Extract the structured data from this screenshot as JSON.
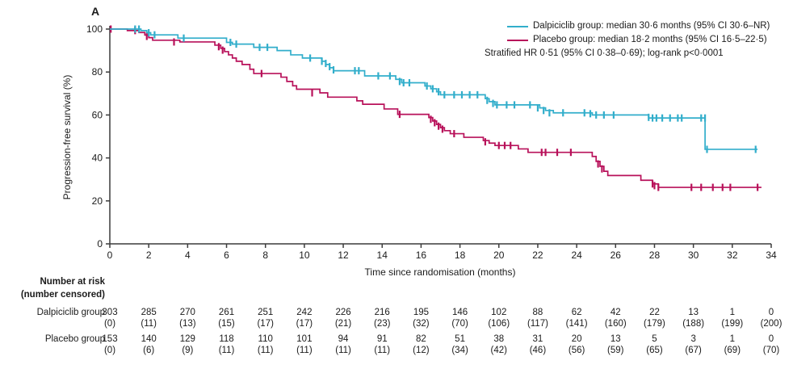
{
  "panel_label": "A",
  "axis": {
    "xlabel": "Time since randomisation (months)",
    "ylabel": "Progression-free survival (%)"
  },
  "legend": {
    "entries": [
      {
        "label": "Dalpiciclib group: median 30·6 months (95% CI 30·6–NR)",
        "color": "#32AECB"
      },
      {
        "label": "Placebo group: median 18·2 months (95% CI 16·5–22·5)",
        "color": "#B8115A"
      }
    ],
    "note": "Stratified HR 0·51 (95% CI 0·38–0·69); log-rank p<0·0001"
  },
  "chart_data": {
    "type": "line",
    "subtype": "kaplan-meier-step",
    "title": "",
    "xlabel": "Time since randomisation (months)",
    "ylabel": "Progression-free survival (%)",
    "xlim": [
      0,
      34
    ],
    "ylim": [
      0,
      100
    ],
    "xticks": [
      0,
      2,
      4,
      6,
      8,
      10,
      12,
      14,
      16,
      18,
      20,
      22,
      24,
      26,
      28,
      30,
      32,
      34
    ],
    "yticks": [
      0,
      20,
      40,
      60,
      80,
      100
    ],
    "grid": false,
    "legend_position": "top-right",
    "series": [
      {
        "name": "Dalpiciclib group",
        "color": "#32AECB",
        "median_months": "30·6",
        "ci": "30·6–NR",
        "end_time": 33.3,
        "steps": [
          [
            0,
            100
          ],
          [
            1.6,
            99.3
          ],
          [
            1.9,
            98.3
          ],
          [
            2.1,
            97.3
          ],
          [
            3.5,
            95.8
          ],
          [
            6.0,
            93.8
          ],
          [
            6.3,
            93.0
          ],
          [
            7.4,
            91.5
          ],
          [
            8.6,
            90.0
          ],
          [
            9.3,
            88.0
          ],
          [
            9.9,
            86.5
          ],
          [
            10.9,
            85.0
          ],
          [
            11.1,
            83.5
          ],
          [
            11.3,
            82.0
          ],
          [
            11.5,
            80.6
          ],
          [
            13.1,
            78.2
          ],
          [
            14.7,
            76.6
          ],
          [
            15.0,
            75.0
          ],
          [
            16.2,
            73.5
          ],
          [
            16.5,
            72.2
          ],
          [
            16.8,
            70.8
          ],
          [
            17.0,
            69.4
          ],
          [
            19.3,
            67.6
          ],
          [
            19.5,
            66.2
          ],
          [
            19.8,
            64.7
          ],
          [
            22.1,
            63.3
          ],
          [
            22.4,
            62.1
          ],
          [
            22.8,
            61.0
          ],
          [
            24.8,
            60.0
          ],
          [
            27.7,
            58.6
          ],
          [
            30.6,
            44.0
          ]
        ],
        "censors": [
          [
            1.3,
            100
          ],
          [
            1.5,
            100
          ],
          [
            2.0,
            98.3
          ],
          [
            2.3,
            97.3
          ],
          [
            3.8,
            95.8
          ],
          [
            6.2,
            93.8
          ],
          [
            6.5,
            93.0
          ],
          [
            7.7,
            91.5
          ],
          [
            8.1,
            91.5
          ],
          [
            10.3,
            86.5
          ],
          [
            10.9,
            85.0
          ],
          [
            11.1,
            84.0
          ],
          [
            11.3,
            82.5
          ],
          [
            11.5,
            81.0
          ],
          [
            12.6,
            80.6
          ],
          [
            12.8,
            80.6
          ],
          [
            13.8,
            78.2
          ],
          [
            14.4,
            78.2
          ],
          [
            14.9,
            75.6
          ],
          [
            15.1,
            75.0
          ],
          [
            15.4,
            75.0
          ],
          [
            16.3,
            73.5
          ],
          [
            16.6,
            72.2
          ],
          [
            16.9,
            70.8
          ],
          [
            17.2,
            69.4
          ],
          [
            17.7,
            69.4
          ],
          [
            18.1,
            69.4
          ],
          [
            18.5,
            69.4
          ],
          [
            18.9,
            69.4
          ],
          [
            19.4,
            66.8
          ],
          [
            19.7,
            65.4
          ],
          [
            19.9,
            64.7
          ],
          [
            20.4,
            64.7
          ],
          [
            20.8,
            64.7
          ],
          [
            21.6,
            64.7
          ],
          [
            22.0,
            63.3
          ],
          [
            22.3,
            62.1
          ],
          [
            22.6,
            61.0
          ],
          [
            23.3,
            61.0
          ],
          [
            24.4,
            61.0
          ],
          [
            24.7,
            60.6
          ],
          [
            25.0,
            60.0
          ],
          [
            25.4,
            60.0
          ],
          [
            25.9,
            60.0
          ],
          [
            27.7,
            58.9
          ],
          [
            27.9,
            58.6
          ],
          [
            28.1,
            58.6
          ],
          [
            28.4,
            58.6
          ],
          [
            28.8,
            58.6
          ],
          [
            29.2,
            58.6
          ],
          [
            29.4,
            58.6
          ],
          [
            30.4,
            58.6
          ],
          [
            30.6,
            58.6
          ],
          [
            30.7,
            44.0
          ],
          [
            33.2,
            44.0
          ]
        ]
      },
      {
        "name": "Placebo group",
        "color": "#B8115A",
        "median_months": "18·2",
        "ci": "16·5–22·5",
        "end_time": 33.5,
        "steps": [
          [
            0,
            100
          ],
          [
            0.9,
            99.3
          ],
          [
            1.5,
            98.4
          ],
          [
            1.8,
            97.2
          ],
          [
            2.0,
            96.0
          ],
          [
            2.2,
            94.8
          ],
          [
            3.6,
            94.0
          ],
          [
            5.4,
            92.5
          ],
          [
            5.7,
            91.0
          ],
          [
            5.9,
            89.5
          ],
          [
            6.1,
            88.0
          ],
          [
            6.3,
            86.5
          ],
          [
            6.5,
            85.0
          ],
          [
            6.8,
            83.5
          ],
          [
            7.2,
            81.3
          ],
          [
            7.4,
            79.3
          ],
          [
            8.8,
            77.6
          ],
          [
            9.1,
            75.6
          ],
          [
            9.4,
            73.6
          ],
          [
            9.6,
            72.0
          ],
          [
            10.8,
            70.3
          ],
          [
            11.2,
            68.3
          ],
          [
            12.7,
            66.6
          ],
          [
            13.0,
            65.0
          ],
          [
            14.1,
            62.8
          ],
          [
            14.8,
            60.3
          ],
          [
            16.4,
            58.8
          ],
          [
            16.6,
            57.2
          ],
          [
            16.8,
            55.6
          ],
          [
            17.0,
            54.1
          ],
          [
            17.2,
            52.7
          ],
          [
            17.5,
            51.3
          ],
          [
            18.2,
            49.6
          ],
          [
            19.2,
            48.1
          ],
          [
            19.5,
            46.9
          ],
          [
            19.8,
            45.8
          ],
          [
            21.0,
            44.2
          ],
          [
            21.5,
            42.6
          ],
          [
            24.8,
            40.7
          ],
          [
            25.0,
            38.4
          ],
          [
            25.2,
            36.1
          ],
          [
            25.4,
            33.8
          ],
          [
            25.6,
            31.8
          ],
          [
            27.3,
            29.6
          ],
          [
            27.9,
            27.9
          ],
          [
            28.2,
            26.3
          ]
        ],
        "censors": [
          [
            0.05,
            100
          ],
          [
            1.3,
            99.3
          ],
          [
            1.9,
            96.6
          ],
          [
            3.3,
            94.0
          ],
          [
            5.6,
            91.8
          ],
          [
            5.8,
            90.2
          ],
          [
            7.8,
            79.3
          ],
          [
            10.4,
            70.3
          ],
          [
            14.9,
            60.3
          ],
          [
            16.5,
            58.0
          ],
          [
            16.7,
            56.4
          ],
          [
            16.9,
            54.8
          ],
          [
            17.1,
            53.4
          ],
          [
            17.7,
            51.3
          ],
          [
            19.3,
            47.5
          ],
          [
            20.0,
            45.8
          ],
          [
            20.3,
            45.8
          ],
          [
            20.6,
            45.8
          ],
          [
            22.2,
            42.6
          ],
          [
            22.4,
            42.6
          ],
          [
            23.0,
            42.6
          ],
          [
            23.7,
            42.6
          ],
          [
            25.1,
            37.2
          ],
          [
            25.3,
            34.9
          ],
          [
            27.9,
            27.9
          ],
          [
            28.0,
            27.1
          ],
          [
            28.2,
            26.3
          ],
          [
            29.9,
            26.3
          ],
          [
            30.4,
            26.3
          ],
          [
            31.0,
            26.3
          ],
          [
            31.5,
            26.3
          ],
          [
            31.9,
            26.3
          ],
          [
            33.3,
            26.3
          ]
        ]
      }
    ],
    "annotation": "Stratified HR 0·51 (95% CI 0·38–0·69); log-rank p<0·0001"
  },
  "risk_table": {
    "header_line1": "Number at risk",
    "header_line2": "(number censored)",
    "columns": [
      0,
      2,
      4,
      6,
      8,
      10,
      12,
      14,
      16,
      18,
      20,
      22,
      24,
      26,
      28,
      30,
      32,
      34
    ],
    "rows": [
      {
        "label": "Dalpiciclib group",
        "at_risk": [
          303,
          285,
          270,
          261,
          251,
          242,
          226,
          216,
          195,
          146,
          102,
          88,
          62,
          42,
          22,
          13,
          1,
          0
        ],
        "censored": [
          0,
          11,
          13,
          15,
          17,
          17,
          21,
          23,
          32,
          70,
          106,
          117,
          141,
          160,
          179,
          188,
          199,
          200
        ]
      },
      {
        "label": "Placebo group",
        "at_risk": [
          153,
          140,
          129,
          118,
          110,
          101,
          94,
          91,
          82,
          51,
          38,
          31,
          20,
          13,
          5,
          3,
          1,
          0
        ],
        "censored": [
          0,
          6,
          9,
          11,
          11,
          11,
          11,
          11,
          12,
          34,
          42,
          46,
          56,
          59,
          65,
          67,
          69,
          70
        ]
      }
    ]
  }
}
